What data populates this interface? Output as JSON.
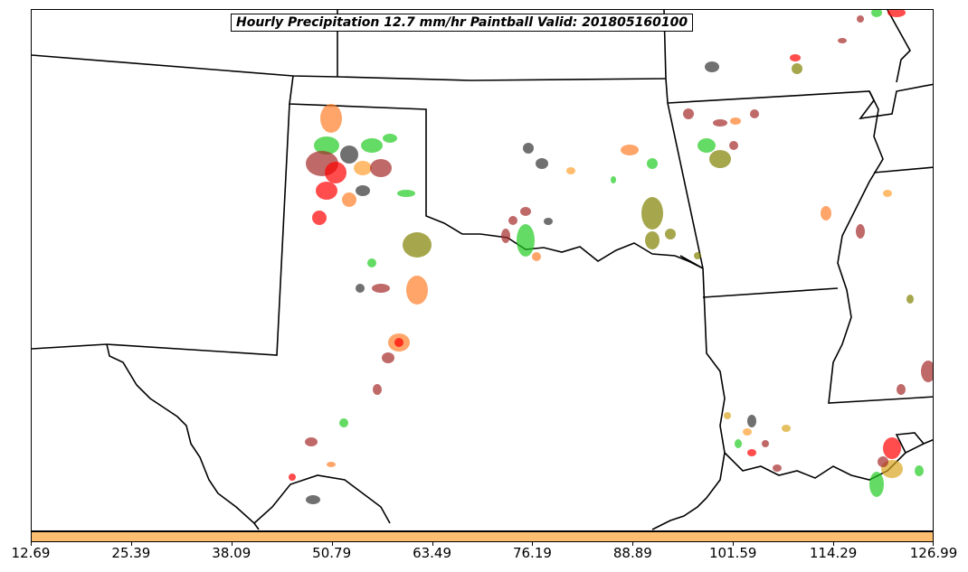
{
  "title": "Hourly Precipitation 12.7 mm/hr Paintball Valid: 201805160100",
  "colorbar": {
    "color": "#fdbf6f",
    "ticks": [
      "12.69",
      "25.39",
      "38.09",
      "50.79",
      "63.49",
      "76.19",
      "88.89",
      "101.59",
      "114.29",
      "126.99"
    ]
  },
  "paintball_colors": {
    "red": "#ff0000",
    "dark_red": "#a52a2a",
    "orange": "#ff7f2a",
    "light_orange": "#ffa030",
    "green": "#22cc22",
    "olive": "#808000",
    "dark_gray": "#333333",
    "goldenrod": "#daa520"
  }
}
